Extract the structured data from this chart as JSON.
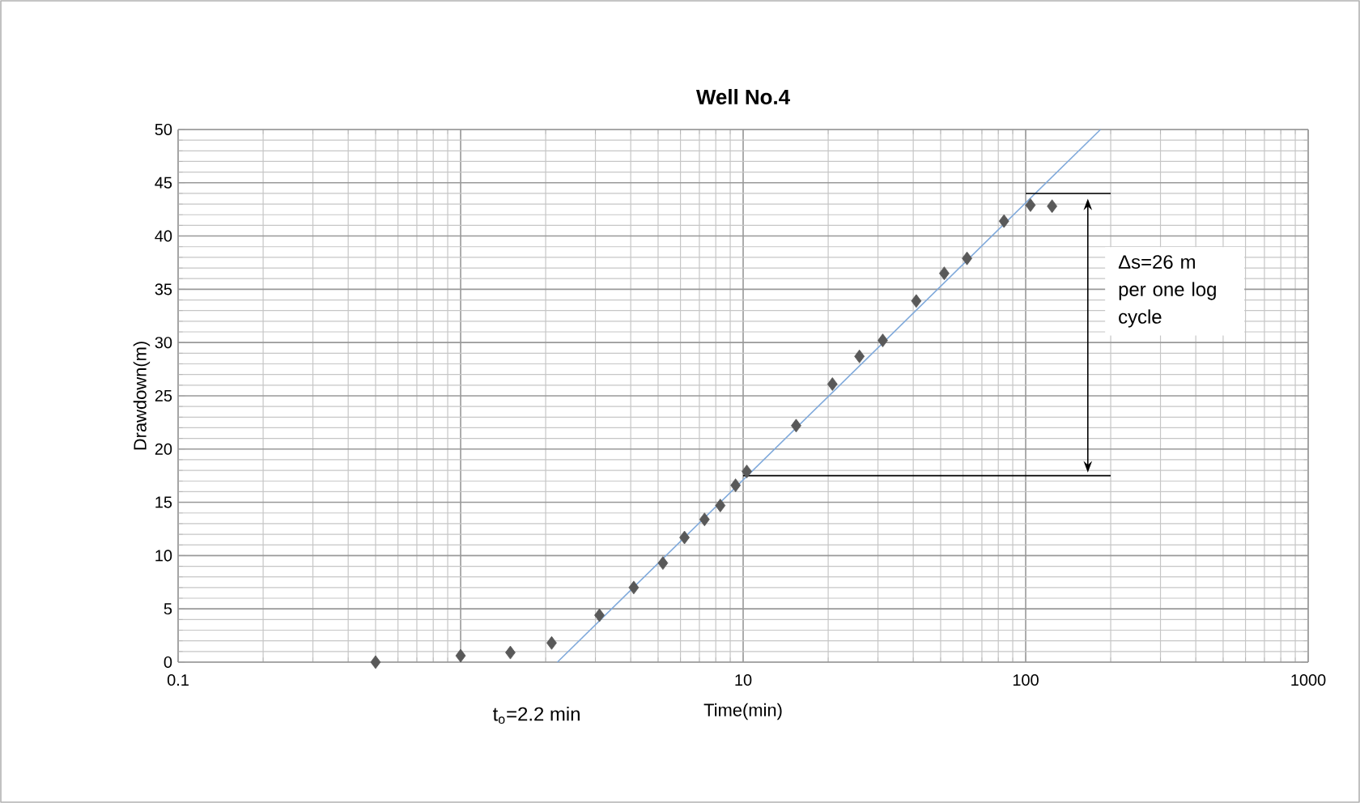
{
  "chart_data": {
    "type": "scatter",
    "title": "**Well No.4**",
    "xlabel": "Time(min)",
    "ylabel": "Drawdown(m)",
    "log": "x",
    "grid": true,
    "xlim": [
      0.1,
      1000
    ],
    "xticks": [
      0.1,
      {
        "value": 1,
        "label": null
      },
      10,
      100,
      1000
    ],
    "ylim": [
      0,
      50
    ],
    "yticks": [
      0,
      5,
      10,
      15,
      20,
      25,
      30,
      35,
      40,
      45,
      50
    ],
    "series": [
      {
        "marker": "diamond",
        "color": "#595959",
        "x": [
          0.5,
          1.0,
          1.5,
          2.1,
          3.1,
          4.1,
          5.2,
          6.2,
          7.3,
          8.3,
          9.4,
          10.3,
          15.4,
          20.7,
          25.8,
          31.2,
          41,
          51.5,
          62,
          83.8,
          104,
          124
        ],
        "values": [
          0,
          0.6,
          0.9,
          1.8,
          4.4,
          7.0,
          9.3,
          11.7,
          13.4,
          14.7,
          16.6,
          17.9,
          22.2,
          26.1,
          28.7,
          30.2,
          33.9,
          36.5,
          37.9,
          41.4,
          42.9,
          42.8
        ]
      },
      {
        "type": "line",
        "marker": "none",
        "color": "#7fa9db",
        "x": [
          2.2,
          184
        ],
        "values": [
          0,
          50
        ]
      },
      {
        "type": "line",
        "marker": "none",
        "color": "#000000",
        "x": [
          100,
          200
        ],
        "values": [
          44,
          44
        ]
      },
      {
        "type": "line",
        "marker": "none",
        "color": "#000000",
        "x": [
          10,
          200
        ],
        "values": [
          17.5,
          17.5
        ]
      }
    ],
    "annotations": [
      "Δs=26 m per one log cycle",
      {
        "text": "t$_{o}$=2.2 min",
        "x": 2.2,
        "y": 0
      }
    ]
  }
}
